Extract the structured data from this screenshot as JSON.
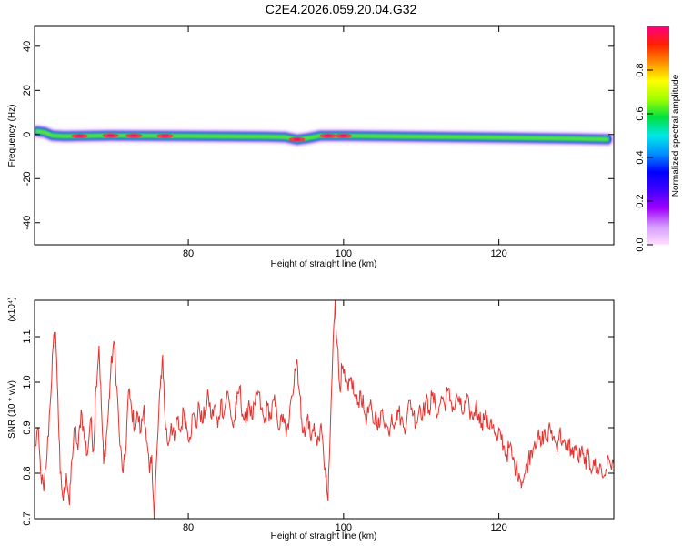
{
  "title": "C2E4.2026.059.20.04.G32",
  "chart_data": [
    {
      "type": "heatmap",
      "xlabel": "Height of straight line (km)",
      "ylabel": "Frequency (Hz)",
      "xlim": [
        60.2,
        134.8
      ],
      "ylim": [
        -50,
        49
      ],
      "xticks": [
        80,
        100,
        120
      ],
      "yticks": [
        40,
        20,
        0,
        -20,
        -40
      ],
      "ridge_frequency": [
        [
          60.5,
          1.5
        ],
        [
          61.5,
          1.0
        ],
        [
          62.5,
          -0.5
        ],
        [
          64,
          -0.8
        ],
        [
          70,
          -0.5
        ],
        [
          80,
          -0.7
        ],
        [
          90,
          -1.0
        ],
        [
          92.5,
          -1.2
        ],
        [
          94,
          -2.3
        ],
        [
          95.5,
          -1.6
        ],
        [
          97,
          -0.6
        ],
        [
          100,
          -0.6
        ],
        [
          110,
          -1.0
        ],
        [
          120,
          -1.4
        ],
        [
          130,
          -1.9
        ],
        [
          134,
          -2.2
        ]
      ],
      "hot_spots_x": [
        66,
        70,
        73,
        77,
        94,
        98,
        100
      ]
    },
    {
      "type": "colorbar",
      "label": "Normalized spectral amplitude",
      "range": [
        0,
        1
      ],
      "ticks": [
        "0.0",
        "0.2",
        "0.4",
        "0.6",
        "0.8"
      ],
      "tick_values": [
        0.0,
        0.2,
        0.4,
        0.6,
        0.8
      ],
      "colors": [
        "#ffe0ff",
        "#d59cff",
        "#a000ff",
        "#4000ff",
        "#0000ff",
        "#0090ff",
        "#00e8e8",
        "#00e040",
        "#a0ff00",
        "#ffff00",
        "#ff9000",
        "#ff2000",
        "#ff0080"
      ]
    },
    {
      "type": "line",
      "xlabel": "Height of straight line (km)",
      "ylabel": "SNR (10 * v/v)",
      "scale_label": "(x10⁴)",
      "xlim": [
        60.2,
        134.8
      ],
      "ylim": [
        0.7,
        1.18
      ],
      "xticks": [
        80,
        100,
        120
      ],
      "yticks": [
        "0.7",
        "0.8",
        "0.9",
        "1.0",
        "1.1"
      ],
      "ytick_values": [
        0.7,
        0.8,
        0.9,
        1.0,
        1.1
      ],
      "line_color": "#e8322e",
      "series": [
        {
          "points": [
            [
              60.2,
              0.84
            ],
            [
              60.6,
              0.9
            ],
            [
              61.0,
              0.8
            ],
            [
              61.4,
              0.76
            ],
            [
              61.8,
              0.84
            ],
            [
              62.2,
              0.95
            ],
            [
              62.6,
              1.08
            ],
            [
              62.9,
              1.11
            ],
            [
              63.2,
              0.97
            ],
            [
              63.5,
              0.8
            ],
            [
              63.9,
              0.74
            ],
            [
              64.3,
              0.8
            ],
            [
              64.7,
              0.73
            ],
            [
              65.0,
              0.83
            ],
            [
              65.4,
              0.9
            ],
            [
              65.8,
              0.85
            ],
            [
              66.2,
              0.94
            ],
            [
              66.6,
              0.88
            ],
            [
              67.0,
              0.84
            ],
            [
              67.4,
              0.92
            ],
            [
              67.8,
              0.85
            ],
            [
              68.1,
              0.99
            ],
            [
              68.5,
              1.08
            ],
            [
              68.8,
              0.95
            ],
            [
              69.1,
              0.82
            ],
            [
              69.4,
              0.87
            ],
            [
              69.7,
              0.93
            ],
            [
              70.0,
              1.02
            ],
            [
              70.4,
              1.09
            ],
            [
              70.8,
              0.99
            ],
            [
              71.2,
              0.86
            ],
            [
              71.6,
              0.8
            ],
            [
              71.9,
              0.84
            ],
            [
              72.3,
              0.98
            ],
            [
              72.7,
              0.94
            ],
            [
              73.1,
              0.9
            ],
            [
              73.5,
              0.93
            ],
            [
              73.9,
              0.89
            ],
            [
              74.3,
              0.95
            ],
            [
              74.6,
              0.87
            ],
            [
              75.0,
              0.8
            ],
            [
              75.3,
              0.84
            ],
            [
              75.6,
              0.7
            ],
            [
              76.0,
              0.86
            ],
            [
              76.4,
              0.99
            ],
            [
              76.7,
              1.06
            ],
            [
              77.0,
              0.92
            ],
            [
              77.4,
              0.86
            ],
            [
              77.8,
              0.91
            ],
            [
              78.2,
              0.87
            ],
            [
              78.6,
              0.92
            ],
            [
              79.0,
              0.89
            ],
            [
              79.4,
              0.94
            ],
            [
              79.8,
              0.9
            ],
            [
              80.2,
              0.88
            ],
            [
              80.6,
              0.93
            ],
            [
              81.0,
              0.9
            ],
            [
              81.4,
              0.95
            ],
            [
              81.8,
              0.91
            ],
            [
              82.2,
              0.94
            ],
            [
              82.6,
              0.97
            ],
            [
              83.0,
              0.92
            ],
            [
              83.4,
              0.95
            ],
            [
              83.8,
              0.9
            ],
            [
              84.2,
              0.96
            ],
            [
              84.6,
              0.93
            ],
            [
              85.0,
              0.98
            ],
            [
              85.4,
              0.94
            ],
            [
              85.8,
              0.9
            ],
            [
              86.2,
              0.95
            ],
            [
              86.6,
              0.99
            ],
            [
              87.0,
              0.93
            ],
            [
              87.4,
              0.91
            ],
            [
              87.8,
              0.96
            ],
            [
              88.2,
              0.92
            ],
            [
              88.6,
              0.95
            ],
            [
              89.0,
              0.98
            ],
            [
              89.4,
              0.94
            ],
            [
              89.8,
              0.91
            ],
            [
              90.2,
              0.95
            ],
            [
              90.6,
              0.92
            ],
            [
              91.0,
              0.96
            ],
            [
              91.4,
              0.93
            ],
            [
              91.8,
              0.9
            ],
            [
              92.2,
              0.93
            ],
            [
              92.6,
              0.88
            ],
            [
              93.0,
              0.92
            ],
            [
              93.4,
              0.97
            ],
            [
              93.7,
              1.03
            ],
            [
              94.0,
              1.05
            ],
            [
              94.3,
              0.98
            ],
            [
              94.6,
              0.92
            ],
            [
              95.0,
              0.88
            ],
            [
              95.4,
              0.93
            ],
            [
              95.8,
              0.87
            ],
            [
              96.2,
              0.91
            ],
            [
              96.6,
              0.86
            ],
            [
              97.0,
              0.9
            ],
            [
              97.4,
              0.85
            ],
            [
              97.7,
              0.79
            ],
            [
              98.0,
              0.74
            ],
            [
              98.3,
              0.9
            ],
            [
              98.6,
              1.06
            ],
            [
              98.9,
              1.18
            ],
            [
              99.2,
              1.08
            ],
            [
              99.5,
              0.99
            ],
            [
              99.8,
              1.03
            ],
            [
              100.2,
              1.0
            ],
            [
              100.6,
              0.98
            ],
            [
              101.0,
              1.01
            ],
            [
              101.4,
              0.97
            ],
            [
              101.8,
              0.95
            ],
            [
              102.2,
              0.98
            ],
            [
              102.6,
              0.94
            ],
            [
              103.0,
              0.92
            ],
            [
              103.4,
              0.95
            ],
            [
              103.8,
              0.91
            ],
            [
              104.2,
              0.93
            ],
            [
              104.6,
              0.9
            ],
            [
              105.0,
              0.94
            ],
            [
              105.4,
              0.91
            ],
            [
              105.8,
              0.89
            ],
            [
              106.2,
              0.93
            ],
            [
              106.6,
              0.91
            ],
            [
              107.0,
              0.94
            ],
            [
              107.4,
              0.92
            ],
            [
              107.8,
              0.9
            ],
            [
              108.2,
              0.93
            ],
            [
              108.6,
              0.96
            ],
            [
              109.0,
              0.93
            ],
            [
              109.4,
              0.91
            ],
            [
              109.8,
              0.95
            ],
            [
              110.2,
              0.93
            ],
            [
              110.6,
              0.96
            ],
            [
              111.0,
              0.94
            ],
            [
              111.4,
              0.97
            ],
            [
              111.8,
              0.95
            ],
            [
              112.2,
              0.93
            ],
            [
              112.6,
              0.97
            ],
            [
              113.0,
              0.95
            ],
            [
              113.4,
              0.98
            ],
            [
              113.8,
              0.96
            ],
            [
              114.2,
              0.94
            ],
            [
              114.6,
              0.97
            ],
            [
              115.0,
              0.95
            ],
            [
              115.4,
              0.93
            ],
            [
              115.8,
              0.96
            ],
            [
              116.2,
              0.94
            ],
            [
              116.6,
              0.92
            ],
            [
              117.0,
              0.95
            ],
            [
              117.4,
              0.93
            ],
            [
              117.8,
              0.91
            ],
            [
              118.2,
              0.93
            ],
            [
              118.6,
              0.9
            ],
            [
              119.0,
              0.92
            ],
            [
              119.4,
              0.89
            ],
            [
              119.8,
              0.87
            ],
            [
              120.2,
              0.89
            ],
            [
              120.6,
              0.86
            ],
            [
              121.0,
              0.84
            ],
            [
              121.4,
              0.86
            ],
            [
              121.8,
              0.83
            ],
            [
              122.2,
              0.81
            ],
            [
              122.6,
              0.8
            ],
            [
              123.0,
              0.78
            ],
            [
              123.4,
              0.8
            ],
            [
              123.8,
              0.83
            ],
            [
              124.2,
              0.85
            ],
            [
              124.6,
              0.87
            ],
            [
              125.0,
              0.88
            ],
            [
              125.4,
              0.86
            ],
            [
              125.8,
              0.89
            ],
            [
              126.2,
              0.87
            ],
            [
              126.6,
              0.9
            ],
            [
              127.0,
              0.88
            ],
            [
              127.4,
              0.86
            ],
            [
              127.8,
              0.89
            ],
            [
              128.2,
              0.87
            ],
            [
              128.6,
              0.85
            ],
            [
              129.0,
              0.87
            ],
            [
              129.4,
              0.84
            ],
            [
              129.8,
              0.86
            ],
            [
              130.2,
              0.83
            ],
            [
              130.6,
              0.85
            ],
            [
              131.0,
              0.82
            ],
            [
              131.4,
              0.84
            ],
            [
              131.8,
              0.81
            ],
            [
              132.2,
              0.83
            ],
            [
              132.6,
              0.8
            ],
            [
              133.0,
              0.82
            ],
            [
              133.4,
              0.79
            ],
            [
              133.8,
              0.81
            ],
            [
              134.2,
              0.83
            ],
            [
              134.8,
              0.82
            ]
          ]
        }
      ]
    }
  ]
}
